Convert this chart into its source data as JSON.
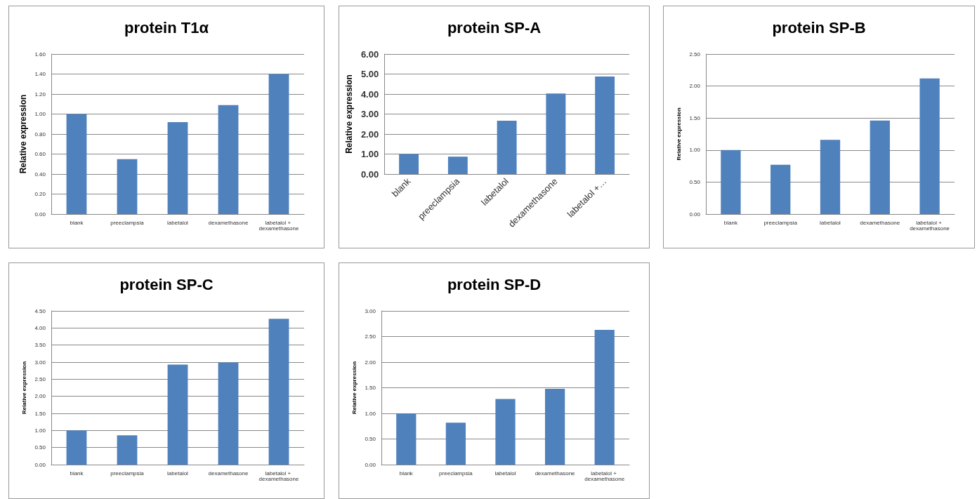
{
  "chart_data": [
    {
      "type": "bar",
      "title": "protein T1α",
      "ylabel": "Relative expression",
      "categories": [
        "blank",
        "preeclampsia",
        "labetalol",
        "dexamethasone",
        "labetalol + dexamethasone"
      ],
      "values": [
        1.0,
        0.55,
        0.92,
        1.09,
        1.4
      ],
      "color": "#4f81bd",
      "ylim": [
        0,
        1.6
      ],
      "yticks": [
        {
          "value": 0,
          "label": "0.00"
        },
        {
          "value": 0.2,
          "label": "0.20"
        },
        {
          "value": 0.4,
          "label": "0.40"
        },
        {
          "value": 0.6,
          "label": "0.60"
        },
        {
          "value": 0.8,
          "label": "0.80"
        },
        {
          "value": 1,
          "label": "1.00"
        },
        {
          "value": 1.2,
          "label": "1.20"
        },
        {
          "value": 1.4,
          "label": "1.40"
        },
        {
          "value": 1.6,
          "label": "1.60"
        }
      ],
      "grid": "y"
    },
    {
      "type": "bar",
      "title": "protein SP-A",
      "ylabel": "Relative expression",
      "categories": [
        "blank",
        "preeclampsia",
        "labetalol",
        "dexamethasone",
        "labetalol +…"
      ],
      "values": [
        1.0,
        0.87,
        2.67,
        4.03,
        4.88
      ],
      "color": "#4f81bd",
      "ylim": [
        0,
        6
      ],
      "yticks": [
        {
          "value": 0,
          "label": "0.00"
        },
        {
          "value": 1,
          "label": "1.00"
        },
        {
          "value": 2,
          "label": "2.00"
        },
        {
          "value": 3,
          "label": "3.00"
        },
        {
          "value": 4,
          "label": "4.00"
        },
        {
          "value": 5,
          "label": "5.00"
        },
        {
          "value": 6,
          "label": "6.00"
        }
      ],
      "grid": "y"
    },
    {
      "type": "bar",
      "title": "protein SP-B",
      "ylabel": "Relative expression",
      "categories": [
        "blank",
        "preeclampsia",
        "labetalol",
        "dexamethasone",
        "labetalol + dexamethasone"
      ],
      "values": [
        1.0,
        0.77,
        1.16,
        1.46,
        2.12
      ],
      "color": "#4f81bd",
      "ylim": [
        0,
        2.5
      ],
      "yticks": [
        {
          "value": 0,
          "label": "0.00"
        },
        {
          "value": 0.5,
          "label": "0.50"
        },
        {
          "value": 1,
          "label": "1.00"
        },
        {
          "value": 1.5,
          "label": "1.50"
        },
        {
          "value": 2,
          "label": "2.00"
        },
        {
          "value": 2.5,
          "label": "2.50"
        }
      ],
      "grid": "y"
    },
    {
      "type": "bar",
      "title": "protein SP-C",
      "ylabel": "Relative expression",
      "categories": [
        "blank",
        "preeclampsia",
        "labetalol",
        "dexamethasone",
        "labetalol + dexamethasone"
      ],
      "values": [
        1.0,
        0.86,
        2.93,
        2.99,
        4.27
      ],
      "color": "#4f81bd",
      "ylim": [
        0,
        4.5
      ],
      "yticks": [
        {
          "value": 0,
          "label": "0.00"
        },
        {
          "value": 0.5,
          "label": "0.50"
        },
        {
          "value": 1,
          "label": "1.00"
        },
        {
          "value": 1.5,
          "label": "1.50"
        },
        {
          "value": 2,
          "label": "2.00"
        },
        {
          "value": 2.5,
          "label": "2.50"
        },
        {
          "value": 3,
          "label": "3.00"
        },
        {
          "value": 3.5,
          "label": "3.50"
        },
        {
          "value": 4,
          "label": "4.00"
        },
        {
          "value": 4.5,
          "label": "4.50"
        }
      ],
      "grid": "y"
    },
    {
      "type": "bar",
      "title": "protein SP-D",
      "ylabel": "Relative expression",
      "categories": [
        "blank",
        "preeclampsia",
        "labetalol",
        "dexamethasone",
        "labetalol + dexamethasone"
      ],
      "values": [
        1.0,
        0.82,
        1.28,
        1.48,
        2.63
      ],
      "color": "#4f81bd",
      "ylim": [
        0,
        3
      ],
      "yticks": [
        {
          "value": 0,
          "label": "0.00"
        },
        {
          "value": 0.5,
          "label": "0.50"
        },
        {
          "value": 1,
          "label": "1.00"
        },
        {
          "value": 1.5,
          "label": "1.50"
        },
        {
          "value": 2,
          "label": "2.00"
        },
        {
          "value": 2.5,
          "label": "2.50"
        },
        {
          "value": 3,
          "label": "3.00"
        }
      ],
      "grid": "y"
    }
  ]
}
